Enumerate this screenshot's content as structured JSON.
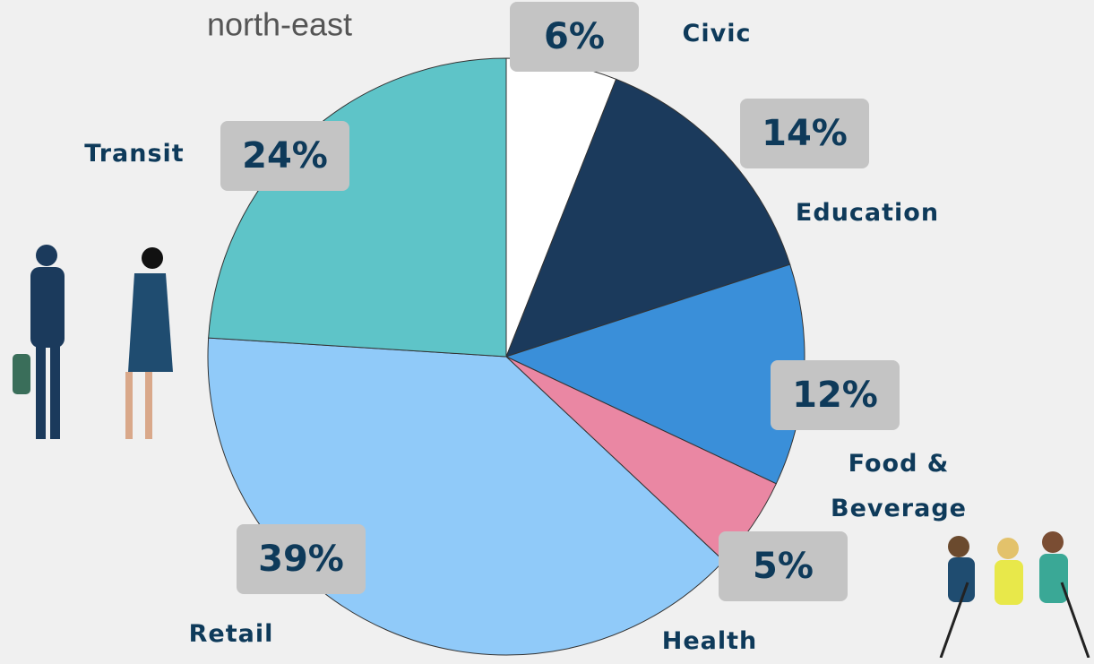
{
  "chart_data": {
    "type": "pie",
    "title": "north-east",
    "categories": [
      "Civic",
      "Education",
      "Food & Beverage",
      "Health",
      "Retail",
      "Transit"
    ],
    "values": [
      6,
      14,
      12,
      5,
      39,
      24
    ],
    "value_labels": [
      "6%",
      "14%",
      "12%",
      "5%",
      "39%",
      "24%"
    ],
    "colors": [
      "#ffffff",
      "#1b3a5c",
      "#3a8fd9",
      "#ea87a3",
      "#90caf9",
      "#5ec4c8"
    ]
  }
}
